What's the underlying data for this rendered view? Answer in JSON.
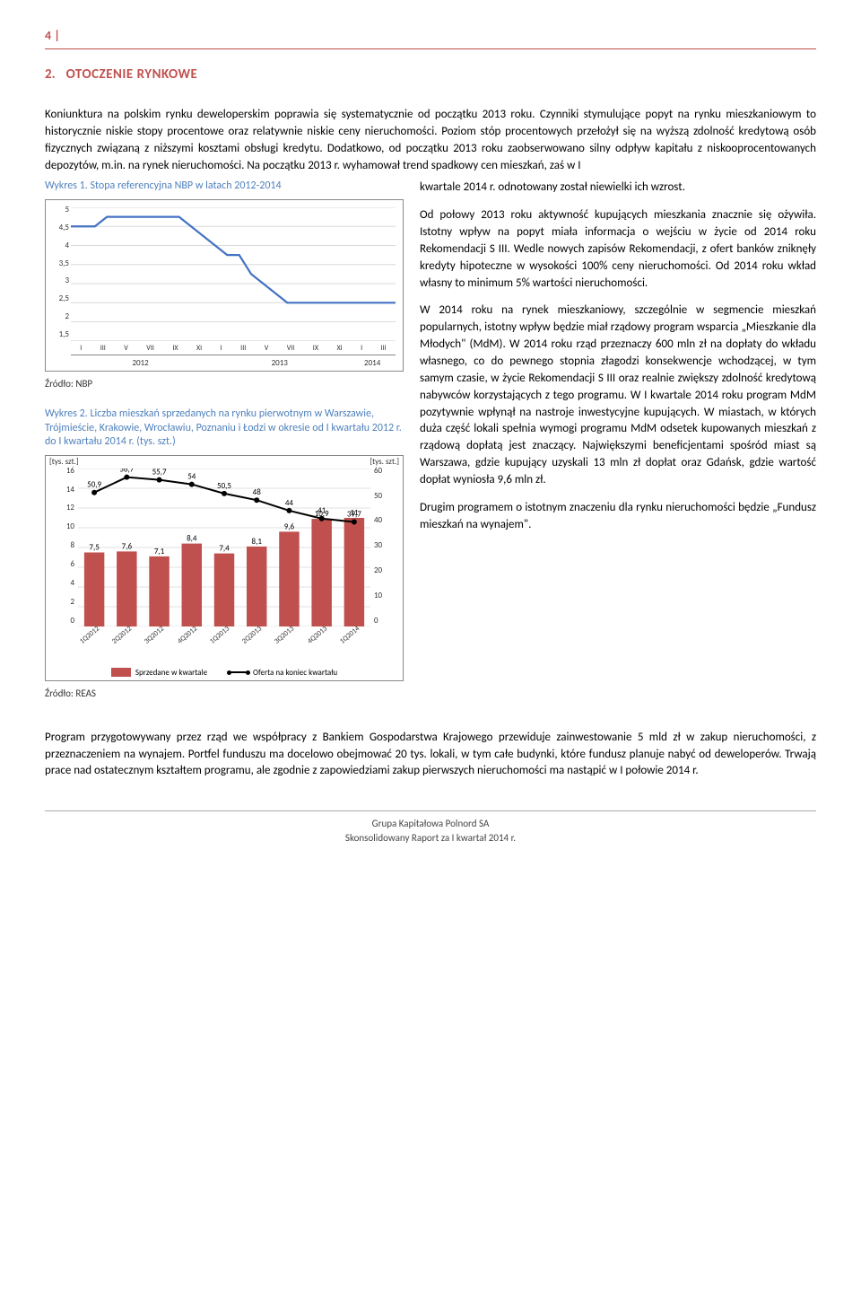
{
  "page_number": "4 |",
  "section": {
    "number": "2.",
    "title": "OTOCZENIE RYNKOWE"
  },
  "intro": "Koniunktura na polskim rynku deweloperskim poprawia się systematycznie od początku 2013 roku. Czynniki stymulujące popyt na rynku mieszkaniowym to historycznie niskie stopy procentowe oraz relatywnie niskie ceny nieruchomości. Poziom stóp procentowych przełożył się na wyższą zdolność kredytową osób fizycznych związaną z niższymi kosztami obsługi kredytu. Dodatkowo, od początku 2013 roku zaobserwowano silny odpływ kapitału z niskooprocentowanych depozytów, m.in. na rynek nieruchomości. Na początku 2013 r. wyhamował trend spadkowy cen mieszkań, zaś w I",
  "right_paras": {
    "p1": "kwartale 2014 r. odnotowany został niewielki ich wzrost.",
    "p2": "Od połowy 2013 roku aktywność kupujących mieszkania znacznie się ożywiła. Istotny wpływ na popyt miała informacja o wejściu w życie od 2014 roku Rekomendacji S III. Wedle nowych zapisów Rekomendacji, z ofert banków zniknęły kredyty hipoteczne w wysokości 100% ceny nieruchomości. Od 2014 roku wkład własny to minimum 5% wartości nieruchomości.",
    "p3": "W 2014 roku na rynek mieszkaniowy, szczególnie w segmencie mieszkań popularnych, istotny wpływ będzie miał rządowy program wsparcia „Mieszkanie dla Młodych\" (MdM). W 2014 roku rząd przeznaczy 600 mln zł na dopłaty do wkładu własnego, co do pewnego stopnia złagodzi konsekwencje wchodzącej, w tym samym czasie, w życie Rekomendacji S III oraz realnie zwiększy zdolność kredytową nabywców korzystających z tego programu. W I kwartale 2014 roku program MdM pozytywnie wpłynął na nastroje inwestycyjne kupujących. W miastach, w których duża część lokali spełnia wymogi programu MdM odsetek kupowanych mieszkań z rządową dopłatą jest znaczący. Największymi beneficjentami spośród miast są Warszawa, gdzie kupujący uzyskali 13 mln zł dopłat oraz Gdańsk, gdzie wartość dopłat wyniosła 9,6 mln zł.",
    "p4": "Drugim programem o istotnym znaczeniu dla rynku nieruchomości będzie „Fundusz mieszkań na wynajem\"."
  },
  "footer_para": "Program przygotowywany przez rząd we współpracy z Bankiem Gospodarstwa Krajowego przewiduje zainwestowanie 5 mld zł w zakup nieruchomości, z przeznaczeniem na wynajem. Portfel funduszu ma docelowo obejmować 20 tys. lokali, w tym całe budynki, które fundusz planuje nabyć od deweloperów. Trwają prace nad ostatecznym kształtem programu, ale zgodnie z zapowiedziami zakup pierwszych nieruchomości ma nastąpić w I połowie 2014 r.",
  "page_footer": {
    "line1": "Grupa Kapitałowa Polnord SA",
    "line2": "Skonsolidowany Raport za I kwartał 2014 r."
  },
  "chart1": {
    "title": "Wykres 1. Stopa referencyjna NBP w latach 2012-2014",
    "source": "Źródło: NBP",
    "type": "line",
    "y_ticks": [
      "5",
      "4,5",
      "4",
      "3,5",
      "3",
      "2,5",
      "2",
      "1,5"
    ],
    "x_ticks": [
      "I",
      "III",
      "V",
      "VII",
      "IX",
      "XI",
      "I",
      "III",
      "V",
      "VII",
      "IX",
      "XI",
      "I",
      "III"
    ],
    "year_labels": [
      "2012",
      "2013",
      "2014"
    ],
    "line_color": "#4472c4",
    "grid_color": "#d9d9d9",
    "background": "#ffffff",
    "ylim": [
      1.5,
      5.0
    ],
    "values": [
      4.5,
      4.5,
      4.5,
      4.75,
      4.75,
      4.75,
      4.75,
      4.75,
      4.75,
      4.75,
      4.5,
      4.25,
      4.0,
      3.75,
      3.75,
      3.25,
      3.0,
      2.75,
      2.5,
      2.5,
      2.5,
      2.5,
      2.5,
      2.5,
      2.5,
      2.5,
      2.5,
      2.5
    ]
  },
  "chart2": {
    "title": "Wykres 2. Liczba mieszkań sprzedanych na rynku pierwotnym w Warszawie, Trójmieście, Krakowie, Wrocławiu, Poznaniu i Łodzi w okresie od I kwartału 2012 r. do I kwartału 2014 r. (tys. szt.)",
    "source": "Źródło: REAS",
    "type": "bar-line-combo",
    "y1_label": "[tys. szt.]",
    "y2_label": "[tys. szt.]",
    "y1_ticks": [
      "16",
      "14",
      "12",
      "10",
      "8",
      "6",
      "4",
      "2",
      "0"
    ],
    "y2_ticks": [
      "60",
      "50",
      "40",
      "30",
      "20",
      "10",
      "0"
    ],
    "categories": [
      "1Q2012",
      "2Q2012",
      "3Q2012",
      "4Q2012",
      "1Q2013",
      "2Q2013",
      "3Q2013",
      "4Q2013",
      "1Q2014"
    ],
    "bars": [
      7.5,
      7.6,
      7.1,
      8.4,
      7.4,
      8.1,
      9.6,
      10.9,
      11.0
    ],
    "bar_color": "#c0504d",
    "line_offer": [
      50.9,
      56.7,
      55.7,
      54.0,
      50.5,
      48.0,
      44.0,
      41.0,
      39.7
    ],
    "line_color": "#000000",
    "grid_color": "#e0e0e0",
    "background": "#ffffff",
    "y1_lim": [
      0,
      16
    ],
    "y2_lim": [
      0,
      60
    ],
    "legend": {
      "bars": "Sprzedane w kwartale",
      "line": "Oferta na koniec kwartału"
    }
  }
}
